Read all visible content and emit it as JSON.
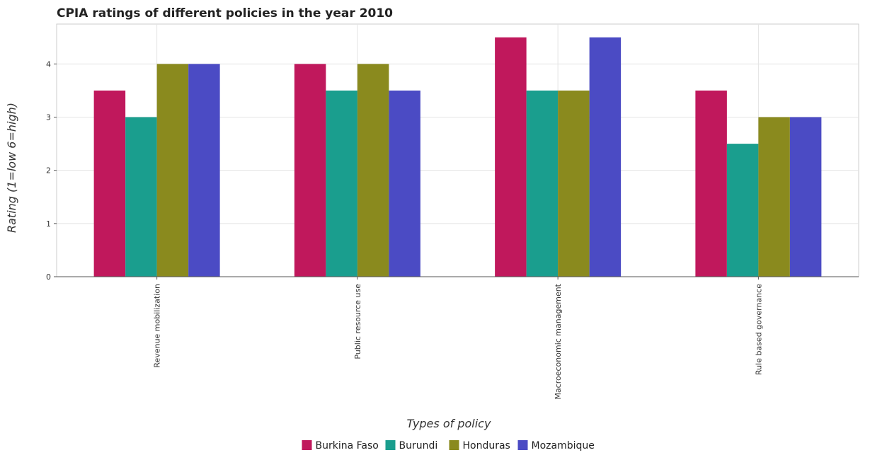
{
  "chart_data": {
    "type": "bar",
    "title": "CPIA ratings of different policies in the year 2010",
    "xlabel": "Types of policy",
    "ylabel": "Rating (1=low 6=high)",
    "ylim": [
      0,
      4.75
    ],
    "yticks": [
      0,
      1,
      2,
      3,
      4
    ],
    "grid": true,
    "legend_position": "bottom",
    "categories": [
      "Revenue mobilization",
      "Public resource use",
      "Macroeconomic management",
      "Rule based governance"
    ],
    "series": [
      {
        "name": "Burkina Faso",
        "color": "#c0185c",
        "values": [
          3.5,
          4.0,
          4.5,
          3.5
        ]
      },
      {
        "name": "Burundi",
        "color": "#1a9e8e",
        "values": [
          3.0,
          3.5,
          3.5,
          2.5
        ]
      },
      {
        "name": "Honduras",
        "color": "#8a8a1e",
        "values": [
          4.0,
          4.0,
          3.5,
          3.0
        ]
      },
      {
        "name": "Mozambique",
        "color": "#4b4bc4",
        "values": [
          4.0,
          3.5,
          4.5,
          3.0
        ]
      }
    ]
  }
}
